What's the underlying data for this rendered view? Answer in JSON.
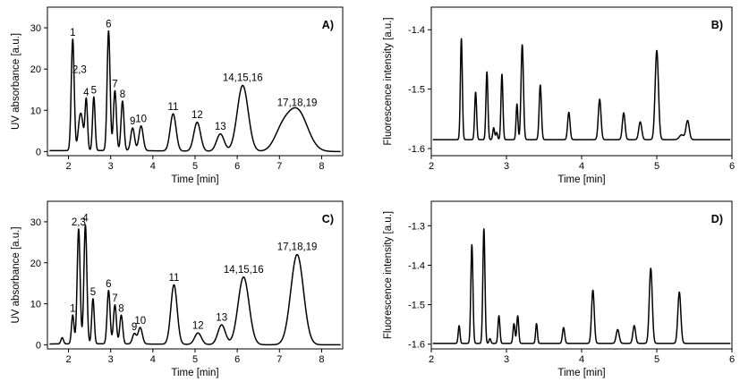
{
  "chart_data": [
    {
      "id": "A",
      "type": "line",
      "panel_label": "A)",
      "xlabel": "Time [min]",
      "ylabel": "UV absorbance [a.u.]",
      "xlim": [
        1.5,
        8.5
      ],
      "ylim": [
        -1,
        35
      ],
      "xticks": [
        2,
        3,
        4,
        5,
        6,
        7,
        8
      ],
      "yticks": [
        0,
        10,
        20,
        30
      ],
      "baseline": 0,
      "peaks": [
        {
          "label": "1",
          "x": 2.1,
          "y": 27,
          "w": 0.035
        },
        {
          "label": "2,3",
          "x": 2.26,
          "y": 6,
          "w": 0.04,
          "label_y": 18
        },
        {
          "label": "",
          "x": 2.32,
          "y": 6,
          "w": 0.04
        },
        {
          "label": "4",
          "x": 2.42,
          "y": 12.5,
          "w": 0.03
        },
        {
          "label": "5",
          "x": 2.6,
          "y": 13,
          "w": 0.03
        },
        {
          "label": "6",
          "x": 2.95,
          "y": 29,
          "w": 0.035
        },
        {
          "label": "7",
          "x": 3.1,
          "y": 14.5,
          "w": 0.035
        },
        {
          "label": "8",
          "x": 3.28,
          "y": 12,
          "w": 0.035
        },
        {
          "label": "9",
          "x": 3.52,
          "y": 5.5,
          "w": 0.045
        },
        {
          "label": "10",
          "x": 3.72,
          "y": 6,
          "w": 0.05
        },
        {
          "label": "11",
          "x": 4.48,
          "y": 9,
          "w": 0.07
        },
        {
          "label": "12",
          "x": 5.05,
          "y": 7,
          "w": 0.08
        },
        {
          "label": "13",
          "x": 5.6,
          "y": 4.2,
          "w": 0.09
        },
        {
          "label": "14,15,16",
          "x": 6.13,
          "y": 16,
          "w": 0.13
        },
        {
          "label": "",
          "x": 7.05,
          "y": 4,
          "w": 0.18
        },
        {
          "label": "17,18,19",
          "x": 7.42,
          "y": 10,
          "w": 0.24
        }
      ]
    },
    {
      "id": "B",
      "type": "line",
      "panel_label": "B)",
      "xlabel": "Time [min]",
      "ylabel": "Fluorescence intensity [a.u.]",
      "xlim": [
        2,
        6
      ],
      "ylim": [
        -1.612,
        -1.362
      ],
      "xticks": [
        2,
        3,
        4,
        5,
        6
      ],
      "yticks": [
        -1.6,
        -1.5,
        -1.4
      ],
      "yticklabels": [
        "-1.6",
        "-1.5",
        "-1.4"
      ],
      "baseline": -1.585,
      "peaks": [
        {
          "label": "",
          "x": 2.4,
          "y": 0.17,
          "w": 0.013
        },
        {
          "label": "",
          "x": 2.59,
          "y": 0.08,
          "w": 0.013
        },
        {
          "label": "",
          "x": 2.74,
          "y": 0.114,
          "w": 0.013
        },
        {
          "label": "",
          "x": 2.83,
          "y": 0.02,
          "w": 0.012
        },
        {
          "label": "",
          "x": 2.87,
          "y": 0.012,
          "w": 0.012
        },
        {
          "label": "",
          "x": 2.94,
          "y": 0.11,
          "w": 0.013
        },
        {
          "label": "",
          "x": 3.14,
          "y": 0.06,
          "w": 0.012
        },
        {
          "label": "",
          "x": 3.21,
          "y": 0.16,
          "w": 0.016
        },
        {
          "label": "",
          "x": 3.45,
          "y": 0.092,
          "w": 0.015
        },
        {
          "label": "",
          "x": 3.83,
          "y": 0.046,
          "w": 0.016
        },
        {
          "label": "",
          "x": 4.24,
          "y": 0.068,
          "w": 0.018
        },
        {
          "label": "",
          "x": 4.56,
          "y": 0.045,
          "w": 0.018
        },
        {
          "label": "",
          "x": 4.78,
          "y": 0.03,
          "w": 0.02
        },
        {
          "label": "",
          "x": 5.0,
          "y": 0.15,
          "w": 0.022
        },
        {
          "label": "",
          "x": 5.33,
          "y": 0.008,
          "w": 0.03
        },
        {
          "label": "",
          "x": 5.41,
          "y": 0.032,
          "w": 0.022
        }
      ]
    },
    {
      "id": "C",
      "type": "line",
      "panel_label": "C)",
      "xlabel": "Time [min]",
      "ylabel": "UV absorbance [a.u.]",
      "xlim": [
        1.5,
        8.5
      ],
      "ylim": [
        -1,
        35
      ],
      "xticks": [
        2,
        3,
        4,
        5,
        6,
        7,
        8
      ],
      "yticks": [
        0,
        10,
        20,
        30
      ],
      "baseline": 0,
      "peaks": [
        {
          "label": "",
          "x": 1.85,
          "y": 1.5,
          "w": 0.03
        },
        {
          "label": "1",
          "x": 2.1,
          "y": 7,
          "w": 0.03
        },
        {
          "label": "2,3",
          "x": 2.24,
          "y": 28,
          "w": 0.035
        },
        {
          "label": "4",
          "x": 2.4,
          "y": 29,
          "w": 0.035
        },
        {
          "label": "5",
          "x": 2.58,
          "y": 11,
          "w": 0.03
        },
        {
          "label": "6",
          "x": 2.95,
          "y": 13,
          "w": 0.035
        },
        {
          "label": "7",
          "x": 3.1,
          "y": 9.5,
          "w": 0.035
        },
        {
          "label": "8",
          "x": 3.25,
          "y": 7,
          "w": 0.035
        },
        {
          "label": "9",
          "x": 3.56,
          "y": 2.5,
          "w": 0.045
        },
        {
          "label": "10",
          "x": 3.7,
          "y": 4,
          "w": 0.05
        },
        {
          "label": "11",
          "x": 4.5,
          "y": 14.5,
          "w": 0.075
        },
        {
          "label": "12",
          "x": 5.07,
          "y": 2.8,
          "w": 0.08
        },
        {
          "label": "13",
          "x": 5.63,
          "y": 4.8,
          "w": 0.09
        },
        {
          "label": "14,15,16",
          "x": 6.15,
          "y": 16.5,
          "w": 0.13
        },
        {
          "label": "17,18,19",
          "x": 7.42,
          "y": 22,
          "w": 0.15
        }
      ]
    },
    {
      "id": "D",
      "type": "line",
      "panel_label": "D)",
      "xlabel": "Time [min]",
      "ylabel": "Fluorescence intensity [a.u.]",
      "xlim": [
        2,
        6
      ],
      "ylim": [
        -1.612,
        -1.238
      ],
      "xticks": [
        2,
        3,
        4,
        5,
        6
      ],
      "yticks": [
        -1.6,
        -1.5,
        -1.4,
        -1.3
      ],
      "yticklabels": [
        "-1.6",
        "-1.5",
        "-1.4",
        "-1.3"
      ],
      "baseline": -1.598,
      "peaks": [
        {
          "label": "",
          "x": 2.37,
          "y": 0.045,
          "w": 0.012
        },
        {
          "label": "",
          "x": 2.54,
          "y": 0.25,
          "w": 0.014
        },
        {
          "label": "",
          "x": 2.7,
          "y": 0.29,
          "w": 0.014
        },
        {
          "label": "",
          "x": 2.78,
          "y": 0.012,
          "w": 0.012
        },
        {
          "label": "",
          "x": 2.9,
          "y": 0.07,
          "w": 0.013
        },
        {
          "label": "",
          "x": 3.1,
          "y": 0.05,
          "w": 0.013
        },
        {
          "label": "",
          "x": 3.15,
          "y": 0.07,
          "w": 0.013
        },
        {
          "label": "",
          "x": 3.4,
          "y": 0.05,
          "w": 0.012
        },
        {
          "label": "",
          "x": 3.76,
          "y": 0.04,
          "w": 0.015
        },
        {
          "label": "",
          "x": 4.15,
          "y": 0.135,
          "w": 0.018
        },
        {
          "label": "",
          "x": 4.48,
          "y": 0.035,
          "w": 0.02
        },
        {
          "label": "",
          "x": 4.7,
          "y": 0.045,
          "w": 0.018
        },
        {
          "label": "",
          "x": 4.92,
          "y": 0.19,
          "w": 0.02
        },
        {
          "label": "",
          "x": 5.3,
          "y": 0.13,
          "w": 0.02
        }
      ]
    }
  ]
}
